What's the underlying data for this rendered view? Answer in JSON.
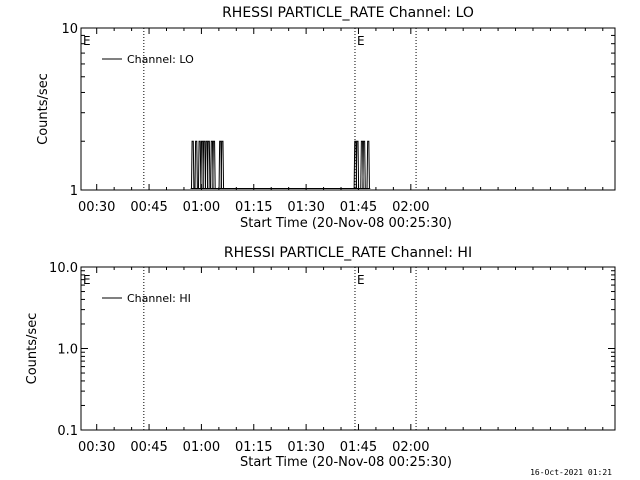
{
  "chart_data": [
    {
      "type": "line",
      "title": "RHESSI PARTICLE_RATE Channel: LO",
      "ylabel": "Counts/sec",
      "xlabel": "Start Time (20-Nov-08 00:25:30)",
      "yscale": "log",
      "ylim": [
        1,
        10
      ],
      "xlim_minutes": [
        0,
        153
      ],
      "x_ticks": [
        "00:30",
        "00:45",
        "01:00",
        "01:15",
        "01:30",
        "01:45",
        "02:00"
      ],
      "x_tick_minutes": [
        4.5,
        19.5,
        34.5,
        49.5,
        64.5,
        79.5,
        94.5
      ],
      "y_ticks": [
        "1",
        "10"
      ],
      "y_tick_values": [
        1,
        10
      ],
      "legend": [
        "Channel: LO"
      ],
      "markers": [
        {
          "label": "E",
          "minute": 0
        },
        {
          "label": "E",
          "minute": 78.5
        }
      ],
      "dotted_lines_minutes": [
        18,
        78.5,
        96
      ],
      "series": [
        {
          "name": "Channel: LO",
          "spikes_minutes": [
            32,
            33,
            34,
            34.7,
            35.3,
            36,
            36.6,
            37.5,
            38.1,
            39.9,
            40.5,
            78.6,
            79.2,
            80.5,
            81.1,
            82.3
          ]
        }
      ]
    },
    {
      "type": "line",
      "title": "RHESSI PARTICLE_RATE Channel: HI",
      "ylabel": "Counts/sec",
      "xlabel": "Start Time (20-Nov-08 00:25:30)",
      "yscale": "log",
      "ylim": [
        0.1,
        10
      ],
      "xlim_minutes": [
        0,
        153
      ],
      "x_ticks": [
        "00:30",
        "00:45",
        "01:00",
        "01:15",
        "01:30",
        "01:45",
        "02:00"
      ],
      "x_tick_minutes": [
        4.5,
        19.5,
        34.5,
        49.5,
        64.5,
        79.5,
        94.5
      ],
      "y_ticks": [
        "0.1",
        "1.0",
        "10.0"
      ],
      "y_tick_values": [
        0.1,
        1,
        10
      ],
      "legend": [
        "Channel: HI"
      ],
      "markers": [
        {
          "label": "E",
          "minute": 0
        },
        {
          "label": "E",
          "minute": 78.5
        }
      ],
      "dotted_lines_minutes": [
        18,
        78.5,
        96
      ],
      "series": [
        {
          "name": "Channel: HI",
          "spikes_minutes": []
        }
      ]
    }
  ],
  "footer": {
    "timestamp": "16-Oct-2021 01:21"
  }
}
